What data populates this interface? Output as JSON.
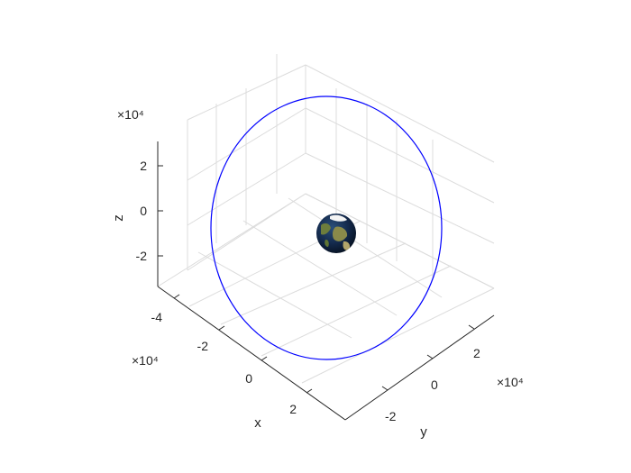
{
  "chart_data": {
    "type": "3d-orbit",
    "title": "",
    "axes": {
      "x": {
        "label": "x",
        "ticks": [
          -4,
          -2,
          0,
          2
        ],
        "tick_labels": [
          "-4",
          "-2",
          "0",
          "2"
        ],
        "range": [
          -5,
          3.5
        ],
        "exponent_label": "×10⁴"
      },
      "y": {
        "label": "y",
        "ticks": [
          -2,
          0,
          2
        ],
        "tick_labels": [
          "-2",
          "0",
          "2"
        ],
        "range": [
          -3.5,
          3.5
        ],
        "exponent_label": "×10⁴"
      },
      "z": {
        "label": "z",
        "ticks": [
          -2,
          0,
          2
        ],
        "tick_labels": [
          "-2",
          "0",
          "2"
        ],
        "range": [
          -3.5,
          3.5
        ],
        "exponent_label": "×10⁴"
      }
    },
    "grid": true,
    "series": [
      {
        "type": "orbit",
        "color": "#0000ff"
      }
    ],
    "central_body": {
      "type": "earth-sphere"
    }
  },
  "colors": {
    "orbit": "#0000ff",
    "axis": "#262626",
    "grid": "#dcdcdc"
  }
}
